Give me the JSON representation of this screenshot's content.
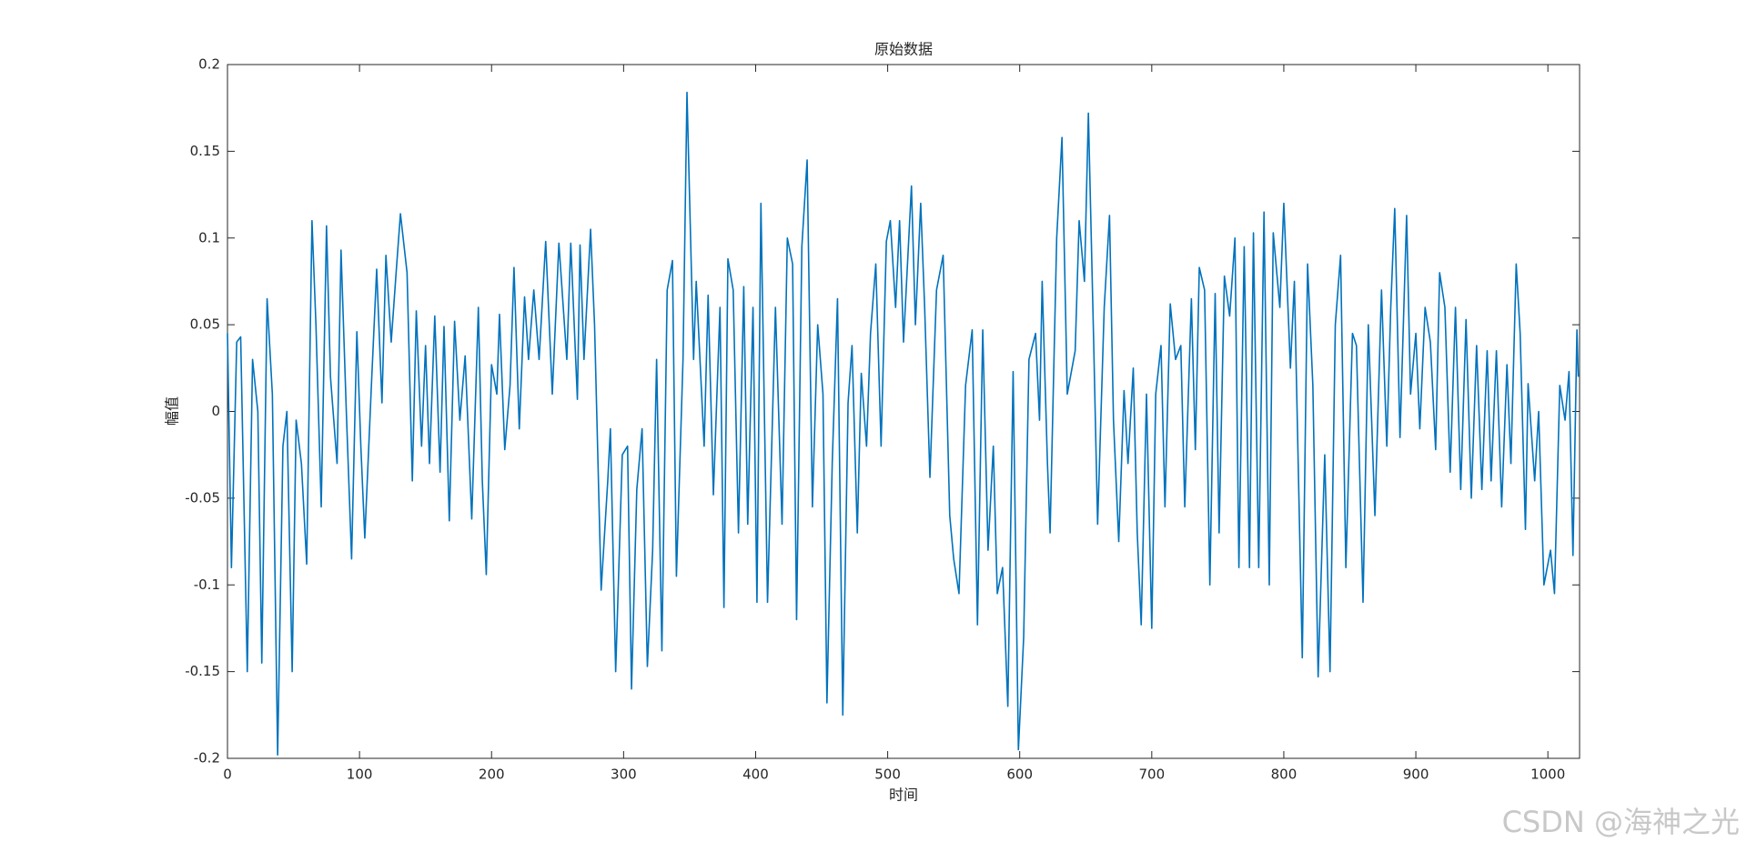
{
  "chart_data": {
    "type": "line",
    "title": "原始数据",
    "x_label": "时间",
    "y_label": "幅值",
    "xlim": [
      0,
      1024
    ],
    "ylim": [
      -0.2,
      0.2
    ],
    "xticks": [
      0,
      100,
      200,
      300,
      400,
      500,
      600,
      700,
      800,
      900,
      1000
    ],
    "yticks": [
      -0.2,
      -0.15,
      -0.1,
      -0.05,
      0,
      0.05,
      0.1,
      0.15,
      0.2
    ],
    "grid": false,
    "box": true,
    "x": [
      0,
      3,
      7,
      10,
      15,
      19,
      23,
      26,
      30,
      34,
      38,
      42,
      45,
      49,
      52,
      56,
      60,
      64,
      67,
      71,
      75,
      78,
      83,
      86,
      90,
      94,
      98,
      101,
      104,
      109,
      113,
      117,
      120,
      124,
      128,
      131,
      136,
      140,
      143,
      147,
      150,
      153,
      157,
      161,
      164,
      168,
      172,
      176,
      180,
      185,
      190,
      193,
      196,
      200,
      204,
      206,
      210,
      214,
      217,
      221,
      225,
      228,
      232,
      236,
      241,
      246,
      251,
      257,
      260,
      265,
      267,
      270,
      275,
      278,
      283,
      288,
      290,
      294,
      299,
      303,
      306,
      310,
      314,
      318,
      322,
      325,
      329,
      333,
      337,
      340,
      345,
      348,
      353,
      355,
      361,
      364,
      368,
      373,
      376,
      379,
      383,
      387,
      391,
      394,
      398,
      401,
      404,
      409,
      415,
      420,
      424,
      428,
      431,
      435,
      439,
      443,
      447,
      451,
      454,
      458,
      462,
      466,
      470,
      473,
      477,
      480,
      484,
      487,
      491,
      495,
      499,
      502,
      506,
      509,
      512,
      518,
      521,
      525,
      528,
      532,
      537,
      542,
      547,
      550,
      554,
      559,
      564,
      568,
      572,
      576,
      580,
      583,
      587,
      591,
      595,
      599,
      603,
      607,
      612,
      615,
      617,
      621,
      623,
      628,
      632,
      636,
      642,
      645,
      649,
      652,
      656,
      659,
      664,
      668,
      671,
      675,
      679,
      682,
      686,
      689,
      692,
      696,
      700,
      703,
      707,
      710,
      714,
      718,
      722,
      725,
      730,
      733,
      736,
      740,
      744,
      748,
      751,
      755,
      759,
      763,
      766,
      770,
      774,
      777,
      781,
      785,
      789,
      792,
      797,
      800,
      805,
      808,
      814,
      818,
      822,
      826,
      831,
      835,
      839,
      843,
      847,
      852,
      855,
      860,
      864,
      869,
      874,
      878,
      881,
      884,
      888,
      893,
      896,
      900,
      903,
      907,
      911,
      915,
      918,
      922,
      926,
      930,
      934,
      938,
      942,
      946,
      950,
      954,
      957,
      961,
      965,
      969,
      972,
      976,
      979,
      983,
      985,
      990,
      993,
      997,
      1002,
      1005,
      1009,
      1013,
      1016,
      1019,
      1022,
      1023
    ],
    "series": [
      {
        "name": "原始数据",
        "color": "#0072bd",
        "values": [
          0.045,
          -0.09,
          0.04,
          0.043,
          -0.15,
          0.03,
          0,
          -0.145,
          0.065,
          0.01,
          -0.198,
          -0.02,
          0,
          -0.15,
          -0.005,
          -0.03,
          -0.088,
          0.11,
          0.05,
          -0.055,
          0.107,
          0.02,
          -0.03,
          0.093,
          0,
          -0.085,
          0.046,
          -0.02,
          -0.073,
          0.015,
          0.082,
          0.005,
          0.09,
          0.04,
          0.083,
          0.114,
          0.08,
          -0.04,
          0.058,
          -0.02,
          0.038,
          -0.03,
          0.055,
          -0.035,
          0.049,
          -0.063,
          0.052,
          -0.005,
          0.032,
          -0.062,
          0.06,
          -0.04,
          -0.094,
          0.027,
          0.01,
          0.056,
          -0.022,
          0.015,
          0.083,
          -0.01,
          0.066,
          0.03,
          0.07,
          0.03,
          0.098,
          0.01,
          0.097,
          0.03,
          0.097,
          0.007,
          0.096,
          0.03,
          0.105,
          0.05,
          -0.103,
          -0.04,
          -0.01,
          -0.15,
          -0.025,
          -0.02,
          -0.16,
          -0.045,
          -0.01,
          -0.147,
          -0.08,
          0.03,
          -0.138,
          0.07,
          0.087,
          -0.095,
          0.03,
          0.184,
          0.03,
          0.075,
          -0.02,
          0.067,
          -0.048,
          0.06,
          -0.113,
          0.088,
          0.07,
          -0.07,
          0.072,
          -0.065,
          0.06,
          -0.11,
          0.12,
          -0.11,
          0.06,
          -0.065,
          0.1,
          0.085,
          -0.12,
          0.095,
          0.145,
          -0.055,
          0.05,
          0.01,
          -0.168,
          -0.03,
          0.065,
          -0.175,
          0.005,
          0.038,
          -0.07,
          0.022,
          -0.02,
          0.045,
          0.085,
          -0.02,
          0.098,
          0.11,
          0.06,
          0.11,
          0.04,
          0.13,
          0.05,
          0.12,
          0.06,
          -0.038,
          0.07,
          0.09,
          -0.06,
          -0.085,
          -0.105,
          0.015,
          0.047,
          -0.123,
          0.047,
          -0.08,
          -0.02,
          -0.105,
          -0.09,
          -0.17,
          0.023,
          -0.195,
          -0.13,
          0.03,
          0.045,
          -0.005,
          0.075,
          -0.03,
          -0.07,
          0.1,
          0.158,
          0.01,
          0.035,
          0.11,
          0.075,
          0.172,
          0.04,
          -0.065,
          0.06,
          0.113,
          -0.005,
          -0.075,
          0.012,
          -0.03,
          0.025,
          -0.07,
          -0.123,
          0.01,
          -0.125,
          0.01,
          0.038,
          -0.055,
          0.062,
          0.03,
          0.038,
          -0.055,
          0.065,
          -0.022,
          0.083,
          0.07,
          -0.1,
          0.068,
          -0.07,
          0.078,
          0.055,
          0.1,
          -0.09,
          0.095,
          -0.09,
          0.103,
          -0.09,
          0.115,
          -0.1,
          0.103,
          0.06,
          0.12,
          0.025,
          0.075,
          -0.142,
          0.085,
          0.015,
          -0.153,
          -0.025,
          -0.15,
          0.05,
          0.09,
          -0.09,
          0.045,
          0.038,
          -0.11,
          0.05,
          -0.06,
          0.07,
          -0.02,
          0.06,
          0.117,
          -0.015,
          0.113,
          0.01,
          0.045,
          -0.01,
          0.06,
          0.04,
          -0.022,
          0.08,
          0.06,
          -0.035,
          0.06,
          -0.045,
          0.053,
          -0.05,
          0.038,
          -0.045,
          0.035,
          -0.04,
          0.035,
          -0.055,
          0.027,
          -0.03,
          0.085,
          0.045,
          -0.068,
          0.016,
          -0.04,
          0,
          -0.1,
          -0.08,
          -0.105,
          0.015,
          -0.005,
          0.023,
          -0.083,
          0.047,
          0.02
        ]
      }
    ]
  },
  "watermark": "CSDN @海神之光"
}
